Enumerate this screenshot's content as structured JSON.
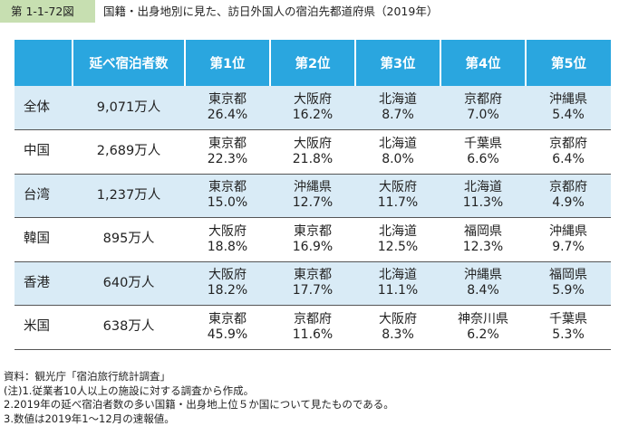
{
  "figure": {
    "number": "第 1-1-72図",
    "title": "国籍・出身地別に見た、訪日外国人の宿泊先都道府県（2019年）"
  },
  "table": {
    "headers": [
      "",
      "延べ宿泊者数",
      "第1位",
      "第2位",
      "第3位",
      "第4位",
      "第5位"
    ],
    "rows": [
      {
        "country": "全体",
        "total": "9,071万人",
        "ranks": [
          {
            "pref": "東京都",
            "share": "26.4%"
          },
          {
            "pref": "大阪府",
            "share": "16.2%"
          },
          {
            "pref": "北海道",
            "share": "8.7%"
          },
          {
            "pref": "京都府",
            "share": "7.0%"
          },
          {
            "pref": "沖縄県",
            "share": "5.4%"
          }
        ]
      },
      {
        "country": "中国",
        "total": "2,689万人",
        "ranks": [
          {
            "pref": "東京都",
            "share": "22.3%"
          },
          {
            "pref": "大阪府",
            "share": "21.8%"
          },
          {
            "pref": "北海道",
            "share": "8.0%"
          },
          {
            "pref": "千葉県",
            "share": "6.6%"
          },
          {
            "pref": "京都府",
            "share": "6.4%"
          }
        ]
      },
      {
        "country": "台湾",
        "total": "1,237万人",
        "ranks": [
          {
            "pref": "東京都",
            "share": "15.0%"
          },
          {
            "pref": "沖縄県",
            "share": "12.7%"
          },
          {
            "pref": "大阪府",
            "share": "11.7%"
          },
          {
            "pref": "北海道",
            "share": "11.3%"
          },
          {
            "pref": "京都府",
            "share": "4.9%"
          }
        ]
      },
      {
        "country": "韓国",
        "total": "895万人",
        "ranks": [
          {
            "pref": "大阪府",
            "share": "18.8%"
          },
          {
            "pref": "東京都",
            "share": "16.9%"
          },
          {
            "pref": "北海道",
            "share": "12.5%"
          },
          {
            "pref": "福岡県",
            "share": "12.3%"
          },
          {
            "pref": "沖縄県",
            "share": "9.7%"
          }
        ]
      },
      {
        "country": "香港",
        "total": "640万人",
        "ranks": [
          {
            "pref": "大阪府",
            "share": "18.2%"
          },
          {
            "pref": "東京都",
            "share": "17.7%"
          },
          {
            "pref": "北海道",
            "share": "11.1%"
          },
          {
            "pref": "沖縄県",
            "share": "8.4%"
          },
          {
            "pref": "福岡県",
            "share": "5.9%"
          }
        ]
      },
      {
        "country": "米国",
        "total": "638万人",
        "ranks": [
          {
            "pref": "東京都",
            "share": "45.9%"
          },
          {
            "pref": "京都府",
            "share": "11.6%"
          },
          {
            "pref": "大阪府",
            "share": "8.3%"
          },
          {
            "pref": "神奈川県",
            "share": "6.2%"
          },
          {
            "pref": "千葉県",
            "share": "5.3%"
          }
        ]
      }
    ]
  },
  "notes": [
    "資料：観光庁「宿泊旅行統計調査」",
    "(注)1.従業者10人以上の施設に対する調査から作成。",
    "2.2019年の延べ宿泊者数の多い国籍・出身地上位５か国について見たものである。",
    "3.数値は2019年1～12月の速報値。"
  ],
  "colors": {
    "header_bg": "#2aa6df",
    "band_bg": "#d9ebf6",
    "figno_bg": "#c7dfb1"
  }
}
